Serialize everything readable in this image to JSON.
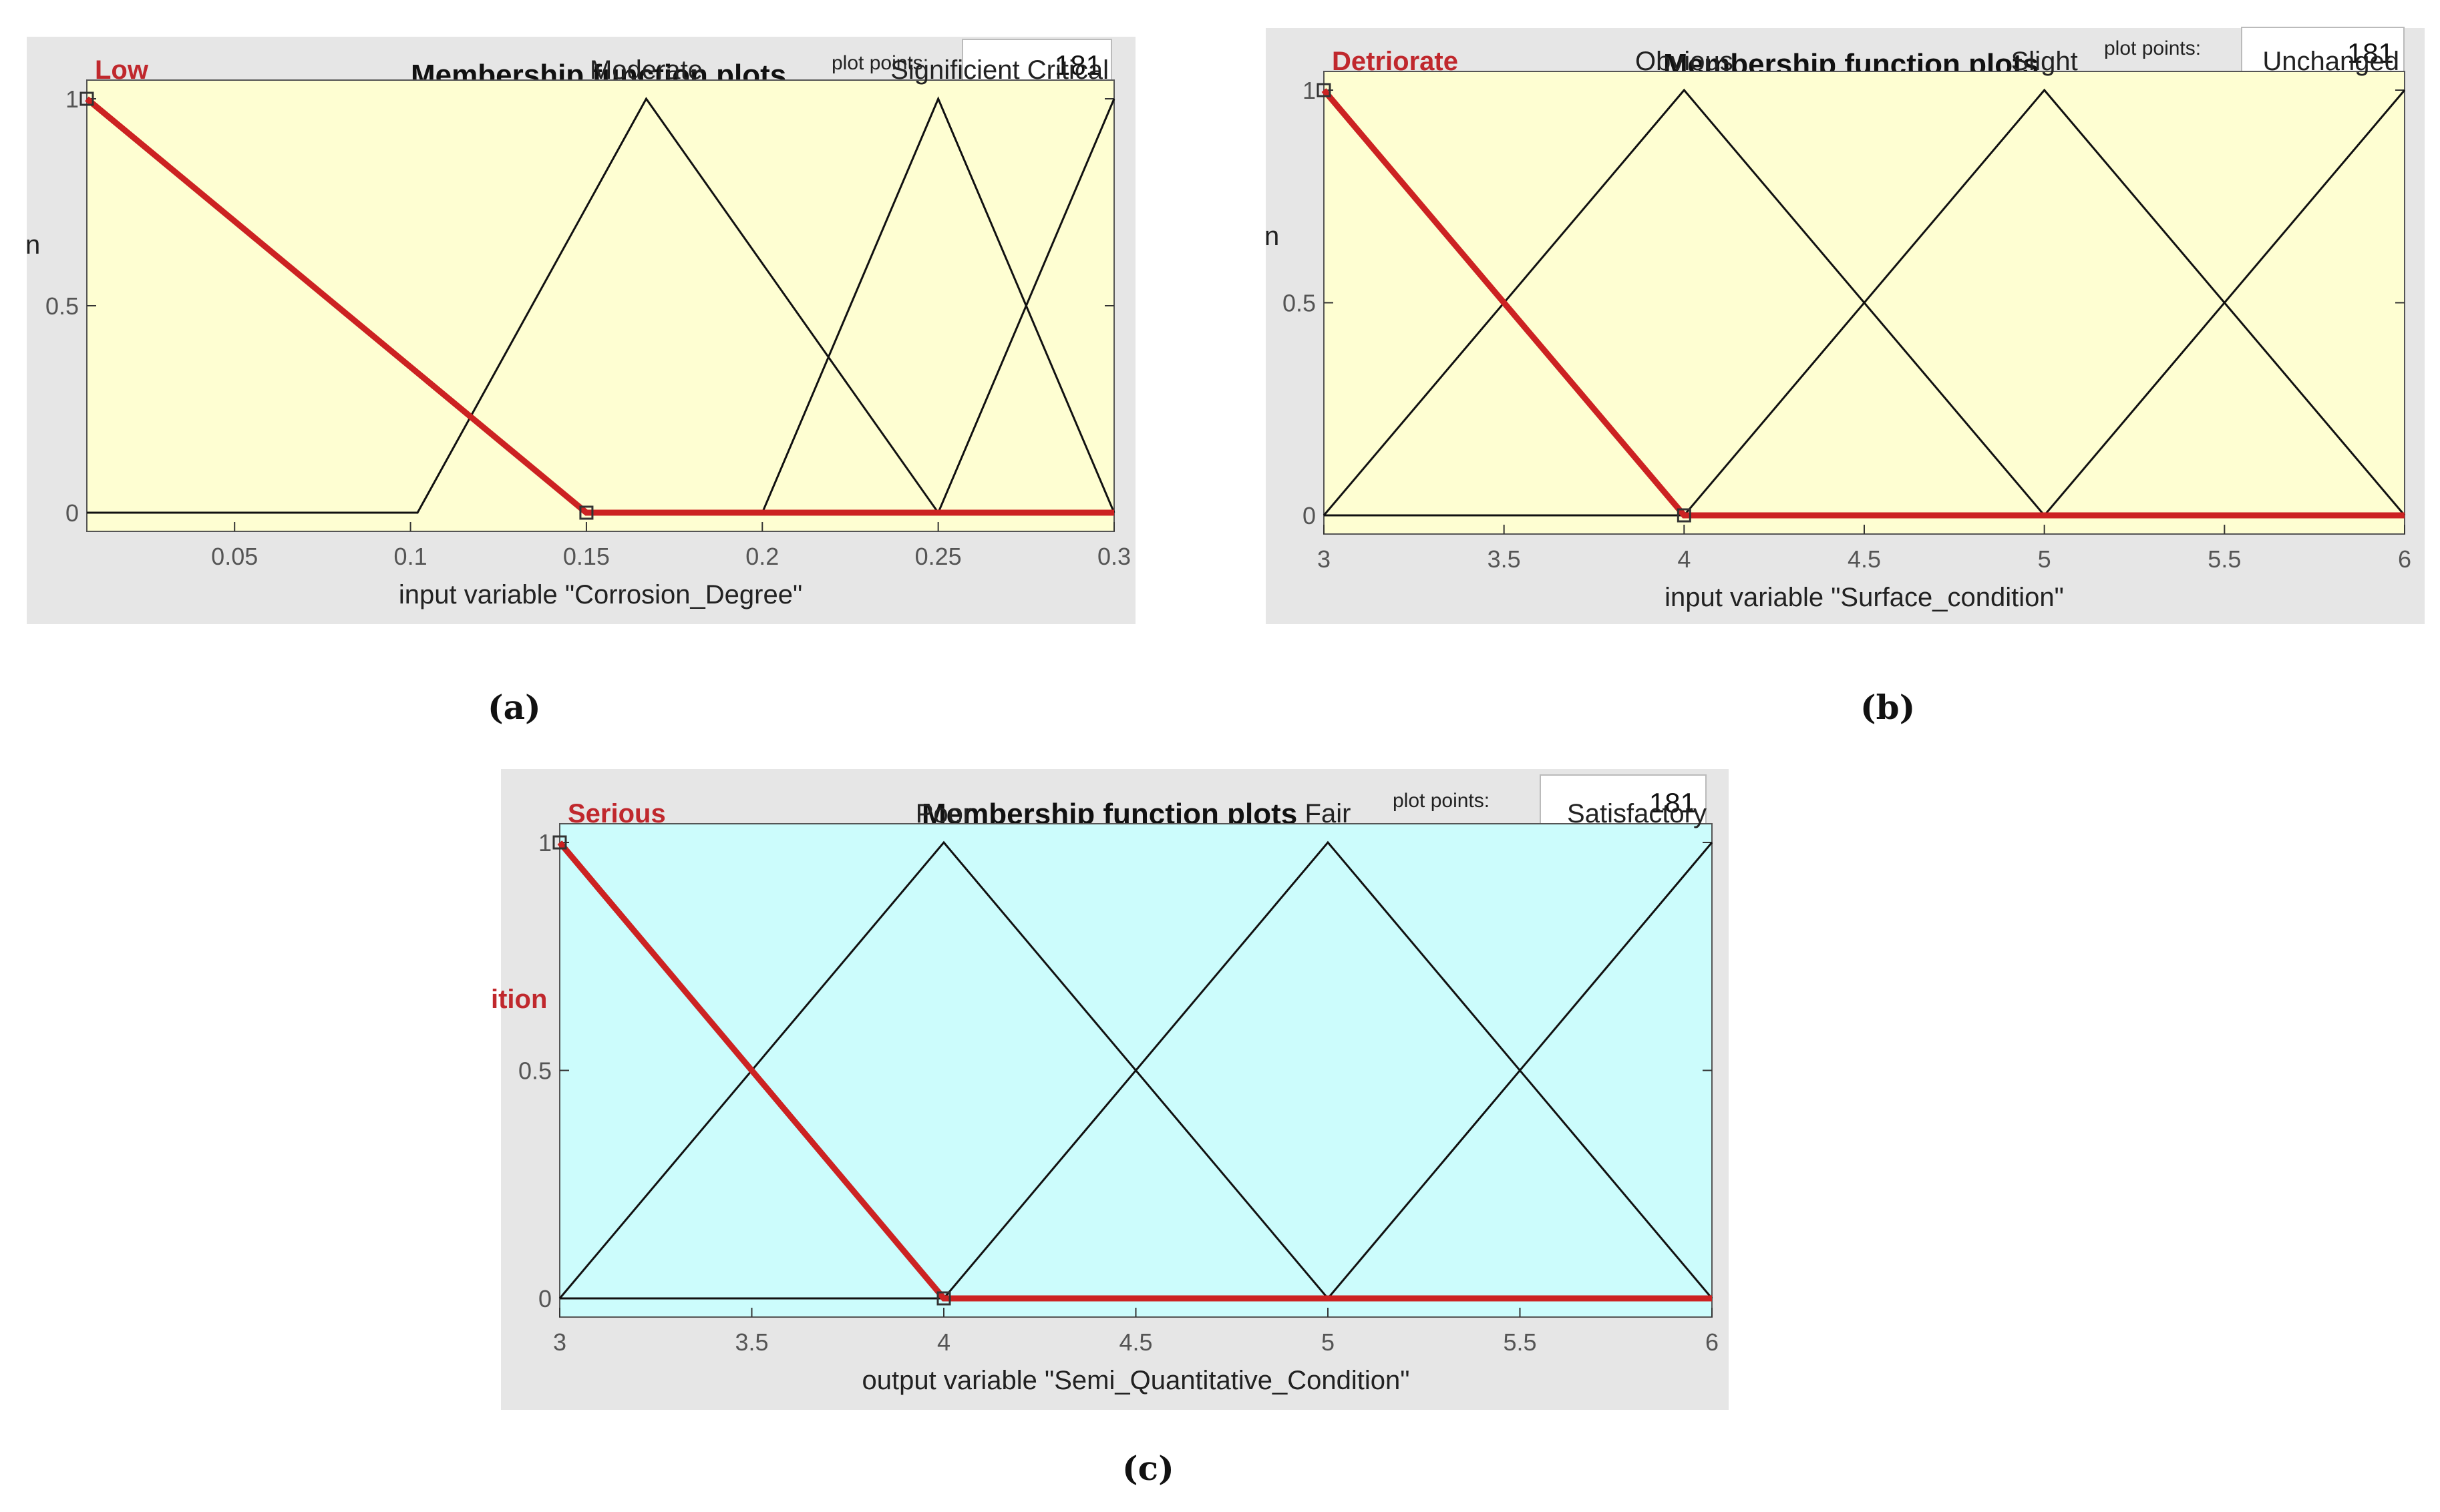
{
  "figures": [
    {
      "caption": "(a)",
      "panel_title": "Membership function plots",
      "plot_points_label": "plot points:",
      "plot_points_value": "181",
      "side_label": "n",
      "bg_color": "#fefed2",
      "chart_data": {
        "type": "line",
        "xlabel": "input variable \"Corrosion_Degree\"",
        "xlim": [
          0.008,
          0.3
        ],
        "ylim": [
          0,
          1
        ],
        "xticks": [
          0.05,
          0.1,
          0.15,
          0.2,
          0.25,
          0.3
        ],
        "xtick_labels": [
          "0.05",
          "0.1",
          "0.15",
          "0.2",
          "0.25",
          "0.3"
        ],
        "yticks": [
          0,
          0.5,
          1
        ],
        "ytick_labels": [
          "0",
          "0.5",
          "1"
        ],
        "series": [
          {
            "name": "Low",
            "x": [
              0.008,
              0.15,
              0.3
            ],
            "y": [
              1,
              0,
              0
            ],
            "highlight": true
          },
          {
            "name": "Moderate",
            "x": [
              0.008,
              0.102,
              0.167,
              0.25,
              0.3
            ],
            "y": [
              0,
              0,
              1,
              0,
              0
            ]
          },
          {
            "name": "Significient",
            "x": [
              0.2,
              0.25,
              0.3
            ],
            "y": [
              0,
              1,
              0
            ]
          },
          {
            "name": "Critical",
            "x": [
              0.25,
              0.3
            ],
            "y": [
              0,
              1
            ]
          }
        ],
        "mf_labels": [
          {
            "text": "Low",
            "x": 0.008,
            "anchor": "start",
            "highlight": true
          },
          {
            "text": "Moderate",
            "x": 0.167,
            "anchor": "middle"
          },
          {
            "text": "Significient Critical",
            "x": 0.3,
            "anchor": "end"
          }
        ]
      }
    },
    {
      "caption": "(b)",
      "panel_title": "Membership function plots",
      "plot_points_label": "plot points:",
      "plot_points_value": "181",
      "side_label": "n",
      "bg_color": "#fefed2",
      "chart_data": {
        "type": "line",
        "xlabel": "input variable \"Surface_condition\"",
        "xlim": [
          3,
          6
        ],
        "ylim": [
          0,
          1
        ],
        "xticks": [
          3,
          3.5,
          4,
          4.5,
          5,
          5.5,
          6
        ],
        "xtick_labels": [
          "3",
          "3.5",
          "4",
          "4.5",
          "5",
          "5.5",
          "6"
        ],
        "yticks": [
          0,
          0.5,
          1
        ],
        "ytick_labels": [
          "0",
          "0.5",
          "1"
        ],
        "series": [
          {
            "name": "Detriorate",
            "x": [
              3,
              4,
              6
            ],
            "y": [
              1,
              0,
              0
            ],
            "highlight": true
          },
          {
            "name": "Obvious",
            "x": [
              3,
              4,
              5,
              6
            ],
            "y": [
              0,
              1,
              0,
              0
            ]
          },
          {
            "name": "Slight",
            "x": [
              3,
              4,
              5,
              6
            ],
            "y": [
              0,
              0,
              1,
              0
            ]
          },
          {
            "name": "Unchanged",
            "x": [
              3,
              5,
              6
            ],
            "y": [
              0,
              0,
              1
            ]
          }
        ],
        "mf_labels": [
          {
            "text": "Detriorate",
            "x": 3,
            "anchor": "start",
            "highlight": true
          },
          {
            "text": "Obvious",
            "x": 4,
            "anchor": "middle"
          },
          {
            "text": "Slight",
            "x": 5,
            "anchor": "middle"
          },
          {
            "text": "Unchanged",
            "x": 6,
            "anchor": "end"
          }
        ]
      }
    },
    {
      "caption": "(c)",
      "panel_title": "Membership function plots",
      "plot_points_label": "plot points:",
      "plot_points_value": "181",
      "side_label": "ition",
      "bg_color": "#ccfcfc",
      "chart_data": {
        "type": "line",
        "xlabel": "output variable \"Semi_Quantitative_Condition\"",
        "xlim": [
          3,
          6
        ],
        "ylim": [
          0,
          1
        ],
        "xticks": [
          3,
          3.5,
          4,
          4.5,
          5,
          5.5,
          6
        ],
        "xtick_labels": [
          "3",
          "3.5",
          "4",
          "4.5",
          "5",
          "5.5",
          "6"
        ],
        "yticks": [
          0,
          0.5,
          1
        ],
        "ytick_labels": [
          "0",
          "0.5",
          "1"
        ],
        "series": [
          {
            "name": "Serious",
            "x": [
              3,
              4,
              6
            ],
            "y": [
              1,
              0,
              0
            ],
            "highlight": true
          },
          {
            "name": "Poor",
            "x": [
              3,
              4,
              5,
              6
            ],
            "y": [
              0,
              1,
              0,
              0
            ]
          },
          {
            "name": "Fair",
            "x": [
              3,
              4,
              5,
              6
            ],
            "y": [
              0,
              0,
              1,
              0
            ]
          },
          {
            "name": "Satisfactory",
            "x": [
              3,
              5,
              6
            ],
            "y": [
              0,
              0,
              1
            ]
          }
        ],
        "mf_labels": [
          {
            "text": "Serious",
            "x": 3,
            "anchor": "start",
            "highlight": true
          },
          {
            "text": "Poor",
            "x": 4,
            "anchor": "middle"
          },
          {
            "text": "Fair",
            "x": 5,
            "anchor": "middle"
          },
          {
            "text": "Satisfactory",
            "x": 6,
            "anchor": "end"
          }
        ]
      }
    }
  ]
}
